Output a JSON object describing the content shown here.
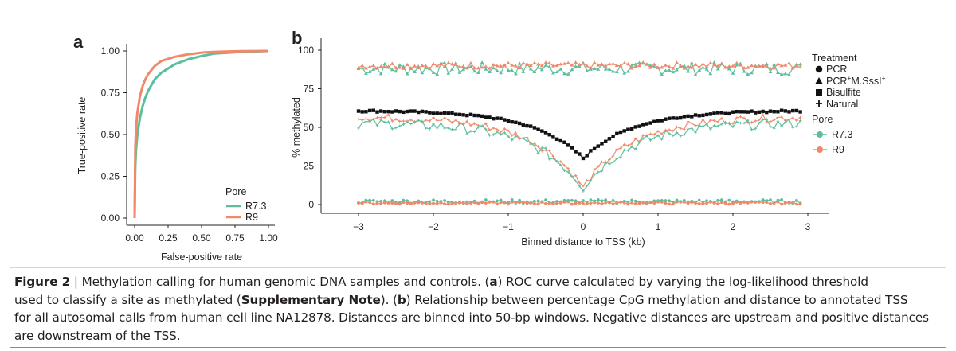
{
  "colors": {
    "r73": "#5bbf9e",
    "r9": "#f0896a",
    "black": "#111111",
    "axis": "#231f20"
  },
  "chart_data": [
    {
      "panel": "a",
      "type": "line",
      "title": "",
      "xlabel": "False-positive rate",
      "ylabel": "True-positive rate",
      "xlim": [
        0,
        1
      ],
      "ylim": [
        0,
        1
      ],
      "xticks": [
        "0.00",
        "0.25",
        "0.50",
        "0.75",
        "1.00"
      ],
      "yticks": [
        "0.00",
        "0.25",
        "0.50",
        "0.75",
        "1.00"
      ],
      "legend_title": "Pore",
      "series": [
        {
          "name": "R7.3",
          "color": "#5bbf9e",
          "x": [
            0,
            0.005,
            0.01,
            0.02,
            0.04,
            0.06,
            0.08,
            0.1,
            0.15,
            0.2,
            0.3,
            0.4,
            0.5,
            0.6,
            0.8,
            1.0
          ],
          "y": [
            0,
            0.3,
            0.4,
            0.5,
            0.6,
            0.67,
            0.72,
            0.76,
            0.83,
            0.87,
            0.92,
            0.95,
            0.97,
            0.985,
            0.995,
            1.0
          ]
        },
        {
          "name": "R9",
          "color": "#f0896a",
          "x": [
            0,
            0.005,
            0.01,
            0.02,
            0.04,
            0.06,
            0.08,
            0.1,
            0.15,
            0.2,
            0.3,
            0.4,
            0.5,
            0.6,
            0.8,
            1.0
          ],
          "y": [
            0,
            0.42,
            0.53,
            0.63,
            0.73,
            0.79,
            0.83,
            0.86,
            0.91,
            0.94,
            0.965,
            0.98,
            0.99,
            0.995,
            0.999,
            1.0
          ]
        }
      ]
    },
    {
      "panel": "b",
      "type": "line",
      "title": "",
      "xlabel": "Binned distance to TSS (kb)",
      "ylabel": "% methylated",
      "xlim": [
        -3.3,
        3.3
      ],
      "ylim": [
        -4,
        104
      ],
      "xticks": [
        "−3",
        "−2",
        "−1",
        "0",
        "1",
        "2",
        "3"
      ],
      "xtick_values": [
        -3,
        -2,
        -1,
        0,
        1,
        2,
        3
      ],
      "yticks": [
        "0",
        "25",
        "50",
        "75",
        "100"
      ],
      "ytick_values": [
        0,
        25,
        50,
        75,
        100
      ],
      "legend": {
        "treatment_title": "Treatment",
        "treatment_items": [
          {
            "symbol": "circle",
            "label": "PCR"
          },
          {
            "symbol": "triangle",
            "label": "PCR",
            "sup1": "+",
            "rest": "M.SssI",
            "sup2": "+"
          },
          {
            "symbol": "square",
            "label": "Bisulfite"
          },
          {
            "symbol": "plus",
            "label": "Natural"
          }
        ],
        "pore_title": "Pore",
        "pore_items": [
          {
            "label": "R7.3",
            "color": "#5bbf9e"
          },
          {
            "label": "R9",
            "color": "#f0896a"
          }
        ]
      },
      "x_range_kb": [
        -3.0,
        2.9
      ],
      "series": [
        {
          "treatment": "PCR+M.SssI",
          "pore": "R7.3",
          "profile": "flat",
          "level": 88,
          "noise": 2.0
        },
        {
          "treatment": "PCR+M.SssI",
          "pore": "R9",
          "profile": "flat",
          "level": 90,
          "noise": 1.0
        },
        {
          "treatment": "Bisulfite",
          "pore": "none",
          "profile": "dip",
          "far": 61,
          "center": 30,
          "noise": 0.3
        },
        {
          "treatment": "Natural",
          "pore": "R9",
          "profile": "dip",
          "far": 57,
          "center": 11,
          "noise": 1.2
        },
        {
          "treatment": "Natural",
          "pore": "R7.3",
          "profile": "dip",
          "far": 53,
          "center": 11,
          "noise": 1.6
        },
        {
          "treatment": "PCR",
          "pore": "R7.3",
          "profile": "flat",
          "level": 2,
          "noise": 0.6
        },
        {
          "treatment": "PCR",
          "pore": "R9",
          "profile": "flat",
          "level": 1,
          "noise": 0.4
        }
      ]
    }
  ],
  "caption": {
    "figure_label": "Figure 2",
    "separator": " | ",
    "line1": "Methylation calling for human genomic DNA samples and controls. (",
    "a_letter": "a",
    "line1b": ") ROC curve calculated by varying the log-likelihood threshold",
    "line2a": "used to classify a site as methylated (",
    "supp": "Supplementary Note",
    "line2b": "). (",
    "b_letter": "b",
    "line2c": ") Relationship between percentage CpG methylation and distance to annotated TSS",
    "line3": "for all autosomal calls from human cell line NA12878. Distances are binned into 50-bp windows. Negative distances are upstream and positive distances",
    "line4": "are downstream of the TSS."
  }
}
